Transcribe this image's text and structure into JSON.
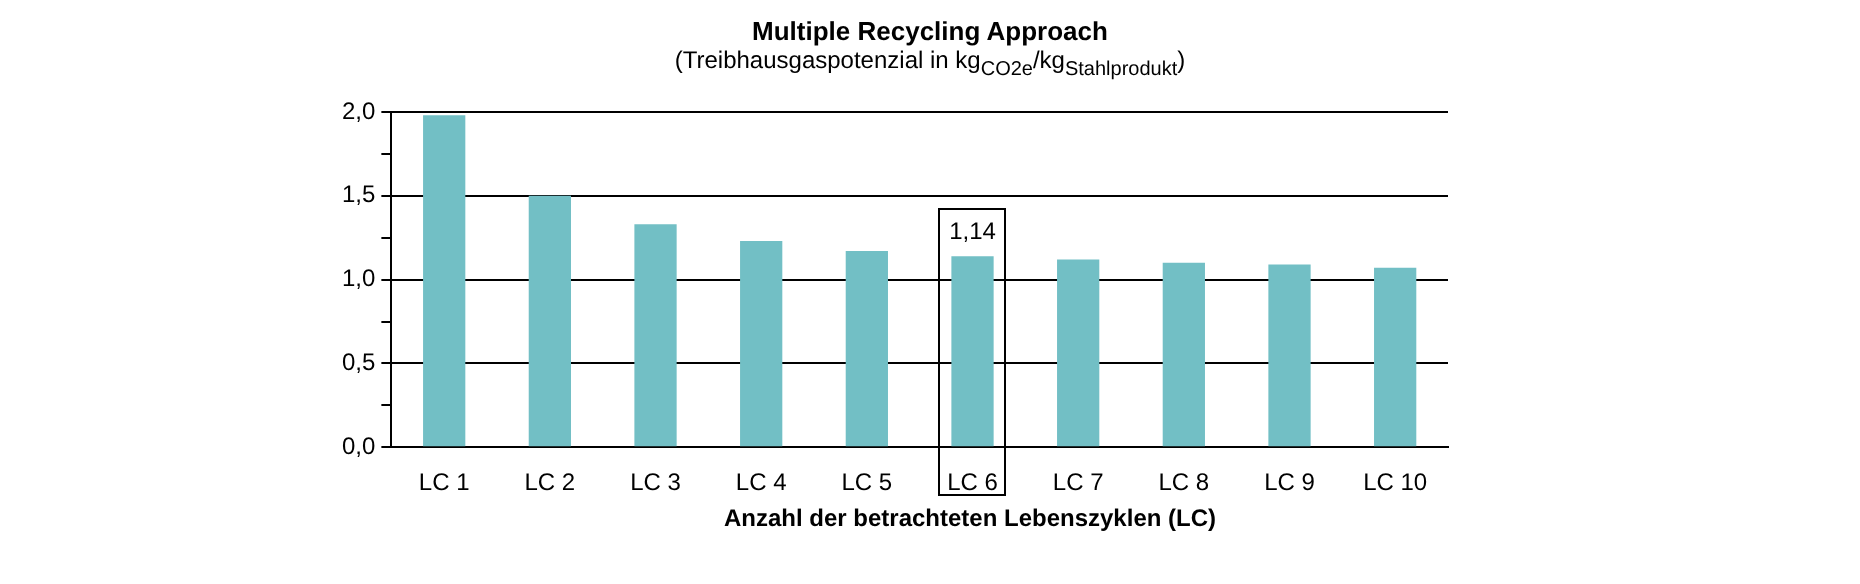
{
  "chart_data": {
    "type": "bar",
    "title": "Multiple Recycling  Approach",
    "subtitle": "(Treibhausgaspotenzial in kg$_{CO2e}$/kg$_{Stahlprodukt}$)",
    "xlabel": "Anzahl der betrachteten Lebenszyklen (LC)",
    "categories": [
      "LC 1",
      "LC 2",
      "LC 3",
      "LC 4",
      "LC 5",
      "LC 6",
      "LC 7",
      "LC 8",
      "LC 9",
      "LC 10"
    ],
    "values": [
      1.98,
      1.5,
      1.33,
      1.23,
      1.17,
      1.14,
      1.12,
      1.1,
      1.09,
      1.07
    ],
    "value_labels": [
      null,
      null,
      null,
      null,
      null,
      "1,14",
      null,
      null,
      null,
      null
    ],
    "color": "#72bfc5",
    "ylim": [
      0,
      2
    ],
    "yticks": [
      {
        "value": 0,
        "label": "0,0"
      },
      {
        "value": 0.25,
        "label": null
      },
      {
        "value": 0.5,
        "label": "0,5"
      },
      {
        "value": 0.75,
        "label": null
      },
      {
        "value": 1,
        "label": "1,0"
      },
      {
        "value": 1.25,
        "label": null
      },
      {
        "value": 1.5,
        "label": "1,5"
      },
      {
        "value": 1.75,
        "label": null
      },
      {
        "value": 2,
        "label": "2,0"
      }
    ],
    "grid": "y"
  }
}
